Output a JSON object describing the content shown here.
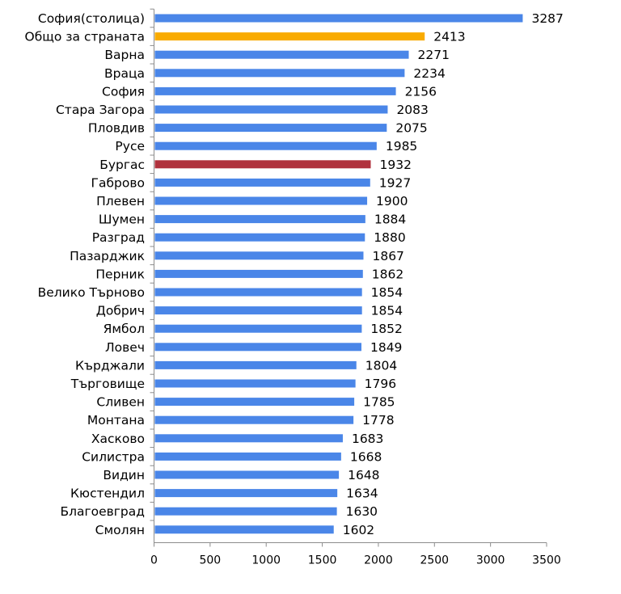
{
  "colors": {
    "default": "#4a86e8",
    "national": "#f9ab00",
    "highlight": "#b0323d",
    "axis": "#8c8c8c"
  },
  "chart_data": {
    "type": "bar",
    "orientation": "horizontal",
    "categories": [
      "София(столица)",
      "Общо за страната",
      "Варна",
      "Враца",
      "София",
      "Стара Загора",
      "Пловдив",
      "Русе",
      "Бургас",
      "Габрово",
      "Плевен",
      "Шумен",
      "Разград",
      "Пазарджик",
      "Перник",
      "Велико Търново",
      "Добрич",
      "Ямбол",
      "Ловеч",
      "Кърджали",
      "Търговище",
      "Сливен",
      "Монтана",
      "Хасково",
      "Силистра",
      "Видин",
      "Кюстендил",
      "Благоевград",
      "Смолян"
    ],
    "values": [
      3287,
      2413,
      2271,
      2234,
      2156,
      2083,
      2075,
      1985,
      1932,
      1927,
      1900,
      1884,
      1880,
      1867,
      1862,
      1854,
      1854,
      1852,
      1849,
      1804,
      1796,
      1785,
      1778,
      1683,
      1668,
      1648,
      1634,
      1630,
      1602
    ],
    "bar_colors": [
      "default",
      "national",
      "default",
      "default",
      "default",
      "default",
      "default",
      "default",
      "highlight",
      "default",
      "default",
      "default",
      "default",
      "default",
      "default",
      "default",
      "default",
      "default",
      "default",
      "default",
      "default",
      "default",
      "default",
      "default",
      "default",
      "default",
      "default",
      "default",
      "default"
    ],
    "x_ticks": [
      0,
      500,
      1000,
      1500,
      2000,
      2500,
      3000,
      3500
    ],
    "xlim": [
      0,
      3500
    ],
    "title": "",
    "xlabel": "",
    "ylabel": "",
    "grid": false,
    "legend": "none"
  }
}
